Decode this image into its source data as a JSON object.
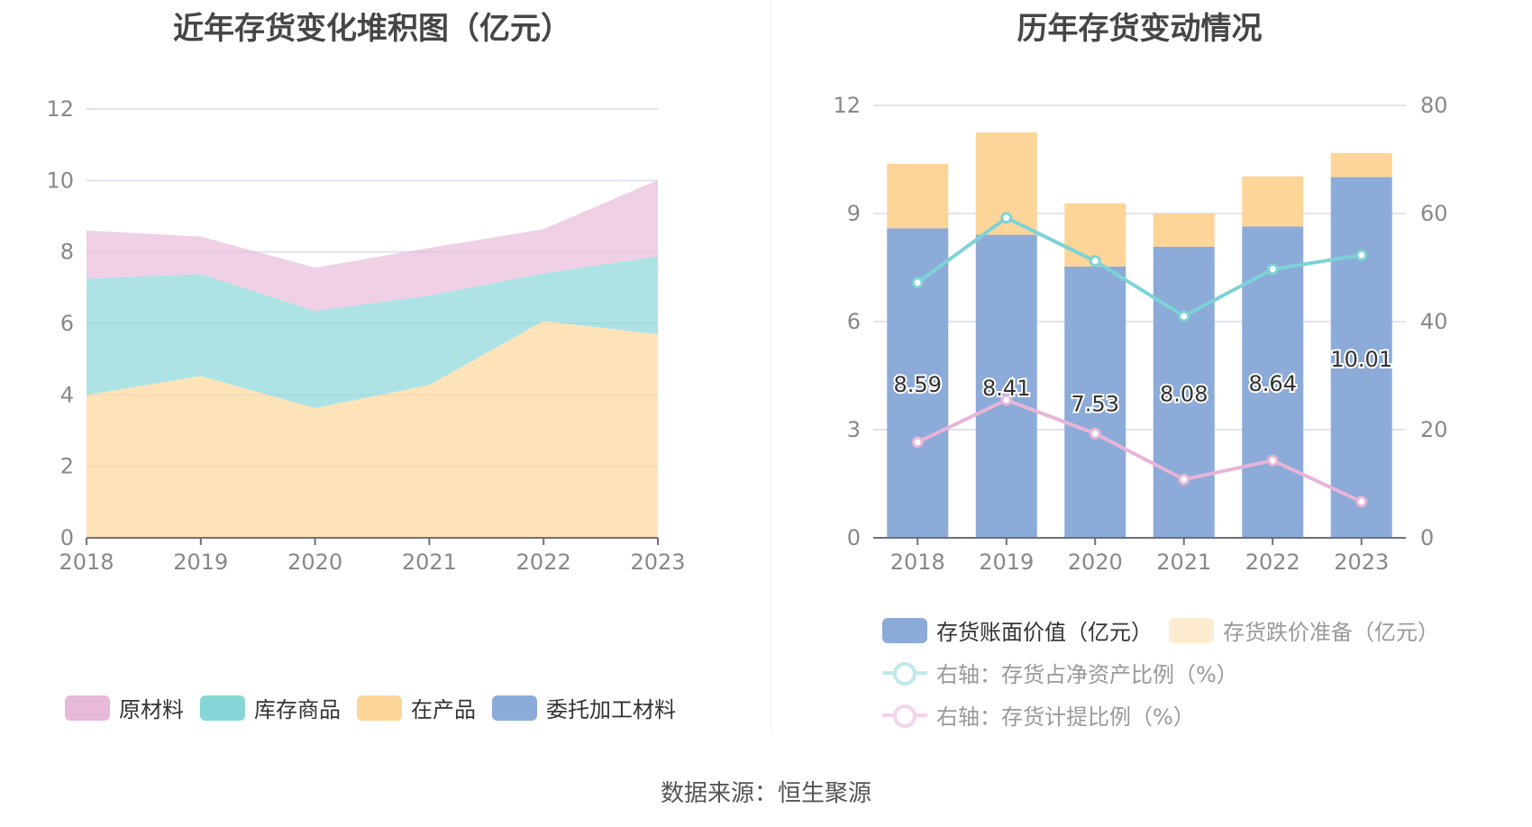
{
  "footer": "数据来源：恒生聚源",
  "colors": {
    "raw_materials": "#e8b9d8",
    "finished_goods": "#86d6d8",
    "wip": "#fdd598",
    "consigned": "#8cabd9",
    "book_value": "#8cabd9",
    "impairment": "#fdd598",
    "ratio_net_assets": "#7dd3d6",
    "provision_ratio": "#e8b4d8",
    "grid": "#e0e3f2",
    "axis": "#6e7079"
  },
  "chart_data": [
    {
      "type": "area",
      "stacked": true,
      "title": "近年存货变化堆积图（亿元）",
      "xlabel": "",
      "ylabel": "",
      "categories": [
        "2018",
        "2019",
        "2020",
        "2021",
        "2022",
        "2023"
      ],
      "ylim": [
        0,
        12
      ],
      "yticks": [
        0,
        2,
        4,
        6,
        8,
        10,
        12
      ],
      "grid": true,
      "legend_position": "bottom",
      "series": [
        {
          "name": "在产品",
          "key": "wip",
          "values": [
            4.0,
            4.53,
            3.63,
            4.28,
            6.07,
            5.69
          ]
        },
        {
          "name": "库存商品",
          "key": "finished_goods",
          "values": [
            3.25,
            2.85,
            2.72,
            2.5,
            1.33,
            2.19
          ]
        },
        {
          "name": "原材料",
          "key": "raw_materials",
          "values": [
            1.35,
            1.05,
            1.21,
            1.33,
            1.24,
            2.13
          ]
        },
        {
          "name": "委托加工材料",
          "key": "consigned",
          "values": [
            0,
            0,
            0,
            0,
            0,
            0
          ]
        }
      ],
      "legend": [
        "原材料",
        "库存商品",
        "在产品",
        "委托加工材料"
      ]
    },
    {
      "type": "bar",
      "stacked": true,
      "title": "历年存货变动情况",
      "categories": [
        "2018",
        "2019",
        "2020",
        "2021",
        "2022",
        "2023"
      ],
      "ylim": [
        0,
        12
      ],
      "yticks": [
        0,
        3,
        6,
        9,
        12
      ],
      "y2lim": [
        0,
        80
      ],
      "y2ticks": [
        0,
        20,
        40,
        60,
        80
      ],
      "grid": true,
      "legend_position": "bottom",
      "series": [
        {
          "name": "存货账面价值（亿元）",
          "key": "book_value",
          "kind": "bar",
          "axis": "left",
          "values": [
            8.59,
            8.41,
            7.53,
            8.08,
            8.64,
            10.01
          ],
          "labels": [
            "8.59",
            "8.41",
            "7.53",
            "8.08",
            "8.64",
            "10.01"
          ]
        },
        {
          "name": "存货跌价准备（亿元）",
          "key": "impairment",
          "kind": "bar",
          "axis": "left",
          "values": [
            1.79,
            2.84,
            1.75,
            0.92,
            1.39,
            0.67
          ]
        },
        {
          "name": "右轴：存货占净资产比例（%）",
          "key": "ratio_net_assets",
          "kind": "line",
          "axis": "right",
          "values": [
            47.2,
            59.2,
            51.2,
            41.0,
            49.7,
            52.3
          ]
        },
        {
          "name": "右轴：存货计提比例（%）",
          "key": "provision_ratio",
          "kind": "line",
          "axis": "right",
          "values": [
            17.7,
            25.5,
            19.3,
            10.8,
            14.3,
            6.7
          ]
        }
      ]
    }
  ]
}
